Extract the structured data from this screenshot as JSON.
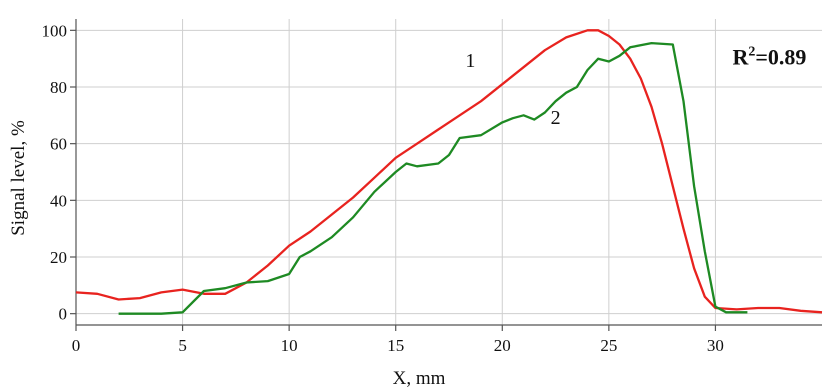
{
  "chart_data": {
    "type": "line",
    "title": "",
    "xlabel": "X, mm",
    "ylabel": "Signal level, %",
    "xlim": [
      0,
      35
    ],
    "ylim": [
      -4,
      104
    ],
    "x_ticks": [
      0,
      5,
      10,
      15,
      20,
      25,
      30
    ],
    "y_ticks": [
      0,
      20,
      40,
      60,
      80,
      100
    ],
    "grid": true,
    "annotation": {
      "base": "R",
      "sup": "2",
      "rest": "=0.89",
      "anchor_x": 30.8,
      "anchor_y": 88
    },
    "series": [
      {
        "label": "1",
        "color": "#e8231f",
        "label_x": 18.5,
        "label_y": 87,
        "points": [
          [
            0,
            7.5
          ],
          [
            1,
            7
          ],
          [
            2,
            5
          ],
          [
            3,
            5.5
          ],
          [
            4,
            7.5
          ],
          [
            5,
            8.5
          ],
          [
            6,
            7
          ],
          [
            7,
            7
          ],
          [
            8,
            11
          ],
          [
            9,
            17
          ],
          [
            10,
            24
          ],
          [
            11,
            29
          ],
          [
            12,
            35
          ],
          [
            13,
            41
          ],
          [
            14,
            48
          ],
          [
            15,
            55
          ],
          [
            16,
            60
          ],
          [
            17,
            65
          ],
          [
            18,
            70
          ],
          [
            19,
            75
          ],
          [
            20,
            81
          ],
          [
            21,
            87
          ],
          [
            22,
            93
          ],
          [
            23,
            97.5
          ],
          [
            24,
            100
          ],
          [
            24.5,
            100
          ],
          [
            25,
            98
          ],
          [
            25.5,
            95
          ],
          [
            26,
            90
          ],
          [
            26.5,
            83
          ],
          [
            27,
            73
          ],
          [
            27.5,
            60
          ],
          [
            28,
            45
          ],
          [
            28.5,
            30
          ],
          [
            29,
            16
          ],
          [
            29.5,
            6
          ],
          [
            30,
            2
          ],
          [
            31,
            1.5
          ],
          [
            32,
            2
          ],
          [
            33,
            2
          ],
          [
            34,
            1
          ],
          [
            35,
            0.5
          ]
        ]
      },
      {
        "label": "2",
        "color": "#1e8a23",
        "label_x": 22.5,
        "label_y": 67,
        "points": [
          [
            2,
            0
          ],
          [
            3,
            0
          ],
          [
            4,
            0
          ],
          [
            5,
            0.5
          ],
          [
            6,
            8
          ],
          [
            7,
            9
          ],
          [
            8,
            11
          ],
          [
            9,
            11.5
          ],
          [
            10,
            14
          ],
          [
            10.5,
            20
          ],
          [
            11,
            22
          ],
          [
            12,
            27
          ],
          [
            13,
            34
          ],
          [
            14,
            43
          ],
          [
            15,
            50
          ],
          [
            15.5,
            53
          ],
          [
            16,
            52
          ],
          [
            17,
            53
          ],
          [
            17.5,
            56
          ],
          [
            18,
            62
          ],
          [
            19,
            63
          ],
          [
            20,
            67.5
          ],
          [
            20.5,
            69
          ],
          [
            21,
            70
          ],
          [
            21.5,
            68.5
          ],
          [
            22,
            71
          ],
          [
            22.5,
            75
          ],
          [
            23,
            78
          ],
          [
            23.5,
            80
          ],
          [
            24,
            86
          ],
          [
            24.5,
            90
          ],
          [
            25,
            89
          ],
          [
            25.5,
            91
          ],
          [
            26,
            94
          ],
          [
            27,
            95.5
          ],
          [
            28,
            95
          ],
          [
            28.5,
            75
          ],
          [
            29,
            45
          ],
          [
            29.5,
            22
          ],
          [
            30,
            2.5
          ],
          [
            30.5,
            0.5
          ],
          [
            31.5,
            0.5
          ]
        ]
      }
    ]
  }
}
